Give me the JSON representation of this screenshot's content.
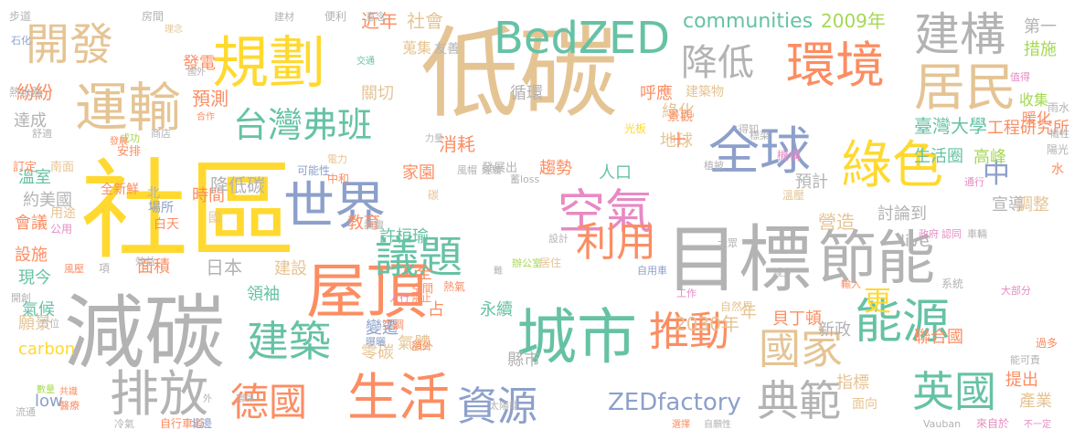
{
  "palette": {
    "gold": "#e5c494",
    "yellow": "#ffd92f",
    "grey": "#b3b3b3",
    "orange": "#fc8d62",
    "green": "#66c2a5",
    "blue": "#8da0cb",
    "pink": "#e78ac3",
    "lime": "#a6d854"
  },
  "words": [
    {
      "text": "低碳",
      "color": "gold"
    },
    {
      "text": "社區",
      "color": "yellow"
    },
    {
      "text": "減碳",
      "color": "grey"
    },
    {
      "text": "目標",
      "color": "grey"
    },
    {
      "text": "城市",
      "color": "green"
    },
    {
      "text": "屋頂",
      "color": "orange"
    },
    {
      "text": "規劃",
      "color": "yellow"
    },
    {
      "text": "節能",
      "color": "grey"
    },
    {
      "text": "綠色",
      "color": "yellow"
    },
    {
      "text": "世界",
      "color": "blue"
    },
    {
      "text": "BedZED",
      "color": "green"
    },
    {
      "text": "生活",
      "color": "orange"
    },
    {
      "text": "運輸",
      "color": "gold"
    },
    {
      "text": "環境",
      "color": "orange"
    },
    {
      "text": "空氣",
      "color": "pink"
    },
    {
      "text": "議題",
      "color": "green"
    },
    {
      "text": "全球",
      "color": "blue"
    },
    {
      "text": "能源",
      "color": "green"
    },
    {
      "text": "居民",
      "color": "gold"
    },
    {
      "text": "排放",
      "color": "grey"
    },
    {
      "text": "建構",
      "color": "grey"
    },
    {
      "text": "開發",
      "color": "gold"
    },
    {
      "text": "利用",
      "color": "orange"
    },
    {
      "text": "資源",
      "color": "blue"
    },
    {
      "text": "建築",
      "color": "green"
    },
    {
      "text": "德國",
      "color": "orange"
    },
    {
      "text": "推動",
      "color": "orange"
    },
    {
      "text": "國家",
      "color": "gold"
    },
    {
      "text": "英國",
      "color": "green"
    },
    {
      "text": "典範",
      "color": "grey"
    },
    {
      "text": "台灣弗班",
      "color": "green"
    },
    {
      "text": "降低",
      "color": "grey"
    },
    {
      "text": "中",
      "color": "blue"
    },
    {
      "text": "更",
      "color": "yellow"
    },
    {
      "text": "ZEDfactory",
      "color": "blue"
    },
    {
      "text": "communities",
      "color": "green"
    },
    {
      "text": "2009年",
      "color": "lime"
    },
    {
      "text": "2030年",
      "color": "gold"
    },
    {
      "text": "臺灣大學",
      "color": "green"
    },
    {
      "text": "工程研究所",
      "color": "orange"
    },
    {
      "text": "生活圈",
      "color": "green"
    },
    {
      "text": "預測",
      "color": "orange"
    },
    {
      "text": "近年",
      "color": "orange"
    },
    {
      "text": "社會",
      "color": "gold"
    },
    {
      "text": "第一",
      "color": "grey"
    },
    {
      "text": "措施",
      "color": "lime"
    },
    {
      "text": "發電",
      "color": "orange"
    },
    {
      "text": "關切",
      "color": "gold"
    },
    {
      "text": "紛紛",
      "color": "orange"
    },
    {
      "text": "循環",
      "color": "grey"
    },
    {
      "text": "呼應",
      "color": "orange"
    },
    {
      "text": "地球",
      "color": "gold"
    },
    {
      "text": "達成",
      "color": "grey"
    },
    {
      "text": "綠化",
      "color": "gold"
    },
    {
      "text": "收集",
      "color": "lime"
    },
    {
      "text": "暖化",
      "color": "orange"
    },
    {
      "text": "溫室",
      "color": "green"
    },
    {
      "text": "家園",
      "color": "orange"
    },
    {
      "text": "時間",
      "color": "orange"
    },
    {
      "text": "十",
      "color": "orange"
    },
    {
      "text": "高峰",
      "color": "lime"
    },
    {
      "text": "消耗",
      "color": "orange"
    },
    {
      "text": "趨勢",
      "color": "orange"
    },
    {
      "text": "降低碳",
      "color": "grey"
    },
    {
      "text": "人口",
      "color": "green"
    },
    {
      "text": "營造",
      "color": "gold"
    },
    {
      "text": "約美國",
      "color": "grey"
    },
    {
      "text": "教育",
      "color": "orange"
    },
    {
      "text": "預計",
      "color": "grey"
    },
    {
      "text": "宣導",
      "color": "grey"
    },
    {
      "text": "調整",
      "color": "gold"
    },
    {
      "text": "討論到",
      "color": "grey"
    },
    {
      "text": "live",
      "color": "grey"
    },
    {
      "text": "會議",
      "color": "orange"
    },
    {
      "text": "許桓瑜",
      "color": "green"
    },
    {
      "text": "設施",
      "color": "orange"
    },
    {
      "text": "日本",
      "color": "grey"
    },
    {
      "text": "建設",
      "color": "gold"
    },
    {
      "text": "面積",
      "color": "orange"
    },
    {
      "text": "全",
      "color": "orange"
    },
    {
      "text": "現今",
      "color": "green"
    },
    {
      "text": "領袖",
      "color": "green"
    },
    {
      "text": "占",
      "color": "orange"
    },
    {
      "text": "氣候",
      "color": "green"
    },
    {
      "text": "永續",
      "color": "green"
    },
    {
      "text": "年",
      "color": "gold"
    },
    {
      "text": "願景",
      "color": "gold"
    },
    {
      "text": "變遷",
      "color": "blue"
    },
    {
      "text": "新政",
      "color": "grey"
    },
    {
      "text": "carbon",
      "color": "yellow"
    },
    {
      "text": "氣體",
      "color": "gold"
    },
    {
      "text": "聯合國",
      "color": "orange"
    },
    {
      "text": "縣市",
      "color": "grey"
    },
    {
      "text": "指標",
      "color": "gold"
    },
    {
      "text": "提出",
      "color": "orange"
    },
    {
      "text": "low",
      "color": "blue"
    },
    {
      "text": "產業",
      "color": "gold"
    },
    {
      "text": "貝丁頓",
      "color": "orange"
    },
    {
      "text": "零碳",
      "color": "gold"
    },
    {
      "text": "面向",
      "color": "gold"
    },
    {
      "text": "步道",
      "color": "grey"
    },
    {
      "text": "房間",
      "color": "grey"
    },
    {
      "text": "建材",
      "color": "grey"
    },
    {
      "text": "便利",
      "color": "grey"
    },
    {
      "text": "意念",
      "color": "grey"
    },
    {
      "text": "石化",
      "color": "blue"
    },
    {
      "text": "熱水器",
      "color": "grey"
    },
    {
      "text": "蒐集",
      "color": "gold"
    },
    {
      "text": "友善",
      "color": "grey"
    },
    {
      "text": "值得",
      "color": "pink"
    },
    {
      "text": "雨水",
      "color": "grey"
    },
    {
      "text": "光板",
      "color": "yellow"
    },
    {
      "text": "建築物",
      "color": "gold"
    },
    {
      "text": "景觀",
      "color": "orange"
    },
    {
      "text": "商店",
      "color": "grey"
    },
    {
      "text": "得知",
      "color": "grey"
    },
    {
      "text": "標梁",
      "color": "grey"
    },
    {
      "text": "機構",
      "color": "pink"
    },
    {
      "text": "陽光",
      "color": "grey"
    },
    {
      "text": "犧牲",
      "color": "grey"
    },
    {
      "text": "舒適",
      "color": "grey"
    },
    {
      "text": "成功",
      "color": "lime"
    },
    {
      "text": "安排",
      "color": "orange"
    },
    {
      "text": "電力",
      "color": "gold"
    },
    {
      "text": "中和",
      "color": "orange"
    },
    {
      "text": "風帽",
      "color": "grey"
    },
    {
      "text": "經驗",
      "color": "grey"
    },
    {
      "text": "植披",
      "color": "grey"
    },
    {
      "text": "溫壓",
      "color": "gold"
    },
    {
      "text": "通行",
      "color": "pink"
    },
    {
      "text": "訂定",
      "color": "orange"
    },
    {
      "text": "南面",
      "color": "gold"
    },
    {
      "text": "可能性",
      "color": "blue"
    },
    {
      "text": "發展出",
      "color": "grey"
    },
    {
      "text": "蓄loss",
      "color": "grey"
    },
    {
      "text": "水",
      "color": "orange"
    },
    {
      "text": "全新鮮",
      "color": "orange"
    },
    {
      "text": "北",
      "color": "grey"
    },
    {
      "text": "場所",
      "color": "blue"
    },
    {
      "text": "白天",
      "color": "orange"
    },
    {
      "text": "用途",
      "color": "gold"
    },
    {
      "text": "公用",
      "color": "pink"
    },
    {
      "text": "國",
      "color": "gold"
    },
    {
      "text": "碳",
      "color": "gold"
    },
    {
      "text": "論壇",
      "color": "grey"
    },
    {
      "text": "設計",
      "color": "grey"
    },
    {
      "text": "政府",
      "color": "pink"
    },
    {
      "text": "認同",
      "color": "pink"
    },
    {
      "text": "車輛",
      "color": "grey"
    },
    {
      "text": "大眾",
      "color": "grey"
    },
    {
      "text": "辦公室",
      "color": "lime"
    },
    {
      "text": "居住",
      "color": "gold"
    },
    {
      "text": "效益",
      "color": "grey"
    },
    {
      "text": "風壓",
      "color": "orange"
    },
    {
      "text": "項",
      "color": "grey"
    },
    {
      "text": "空間",
      "color": "orange"
    },
    {
      "text": "熱氣",
      "color": "orange"
    },
    {
      "text": "難",
      "color": "grey"
    },
    {
      "text": "自用車",
      "color": "blue"
    },
    {
      "text": "減少",
      "color": "grey"
    },
    {
      "text": "輸入",
      "color": "orange"
    },
    {
      "text": "系統",
      "color": "grey"
    },
    {
      "text": "大部分",
      "color": "pink"
    },
    {
      "text": "開創",
      "color": "grey"
    },
    {
      "text": "方位",
      "color": "grey"
    },
    {
      "text": "人行",
      "color": "pink"
    },
    {
      "text": "禁止",
      "color": "orange"
    },
    {
      "text": "工作",
      "color": "pink"
    },
    {
      "text": "自然界",
      "color": "gold"
    },
    {
      "text": "空調",
      "color": "orange"
    },
    {
      "text": "曝曬",
      "color": "blue"
    },
    {
      "text": "額外",
      "color": "orange"
    },
    {
      "text": "過多",
      "color": "orange"
    },
    {
      "text": "能可責",
      "color": "grey"
    },
    {
      "text": "數量",
      "color": "lime"
    },
    {
      "text": "共識",
      "color": "orange"
    },
    {
      "text": "醫療",
      "color": "orange"
    },
    {
      "text": "外",
      "color": "grey"
    },
    {
      "text": "環保",
      "color": "grey"
    },
    {
      "text": "太陽能",
      "color": "grey"
    },
    {
      "text": "流通",
      "color": "grey"
    },
    {
      "text": "冷氣",
      "color": "grey"
    },
    {
      "text": "自行車道",
      "color": "orange"
    },
    {
      "text": "北邊",
      "color": "blue"
    },
    {
      "text": "選擇",
      "color": "orange"
    },
    {
      "text": "自願性",
      "color": "grey"
    },
    {
      "text": "Vauban",
      "color": "grey"
    },
    {
      "text": "來自於",
      "color": "pink"
    },
    {
      "text": "不一定",
      "color": "pink"
    },
    {
      "text": "理念",
      "color": "gold"
    },
    {
      "text": "國外",
      "color": "grey"
    },
    {
      "text": "交通",
      "color": "green"
    },
    {
      "text": "合作",
      "color": "orange"
    },
    {
      "text": "發展",
      "color": "orange"
    },
    {
      "text": "力量",
      "color": "grey"
    },
    {
      "text": "間",
      "color": "grey"
    }
  ]
}
